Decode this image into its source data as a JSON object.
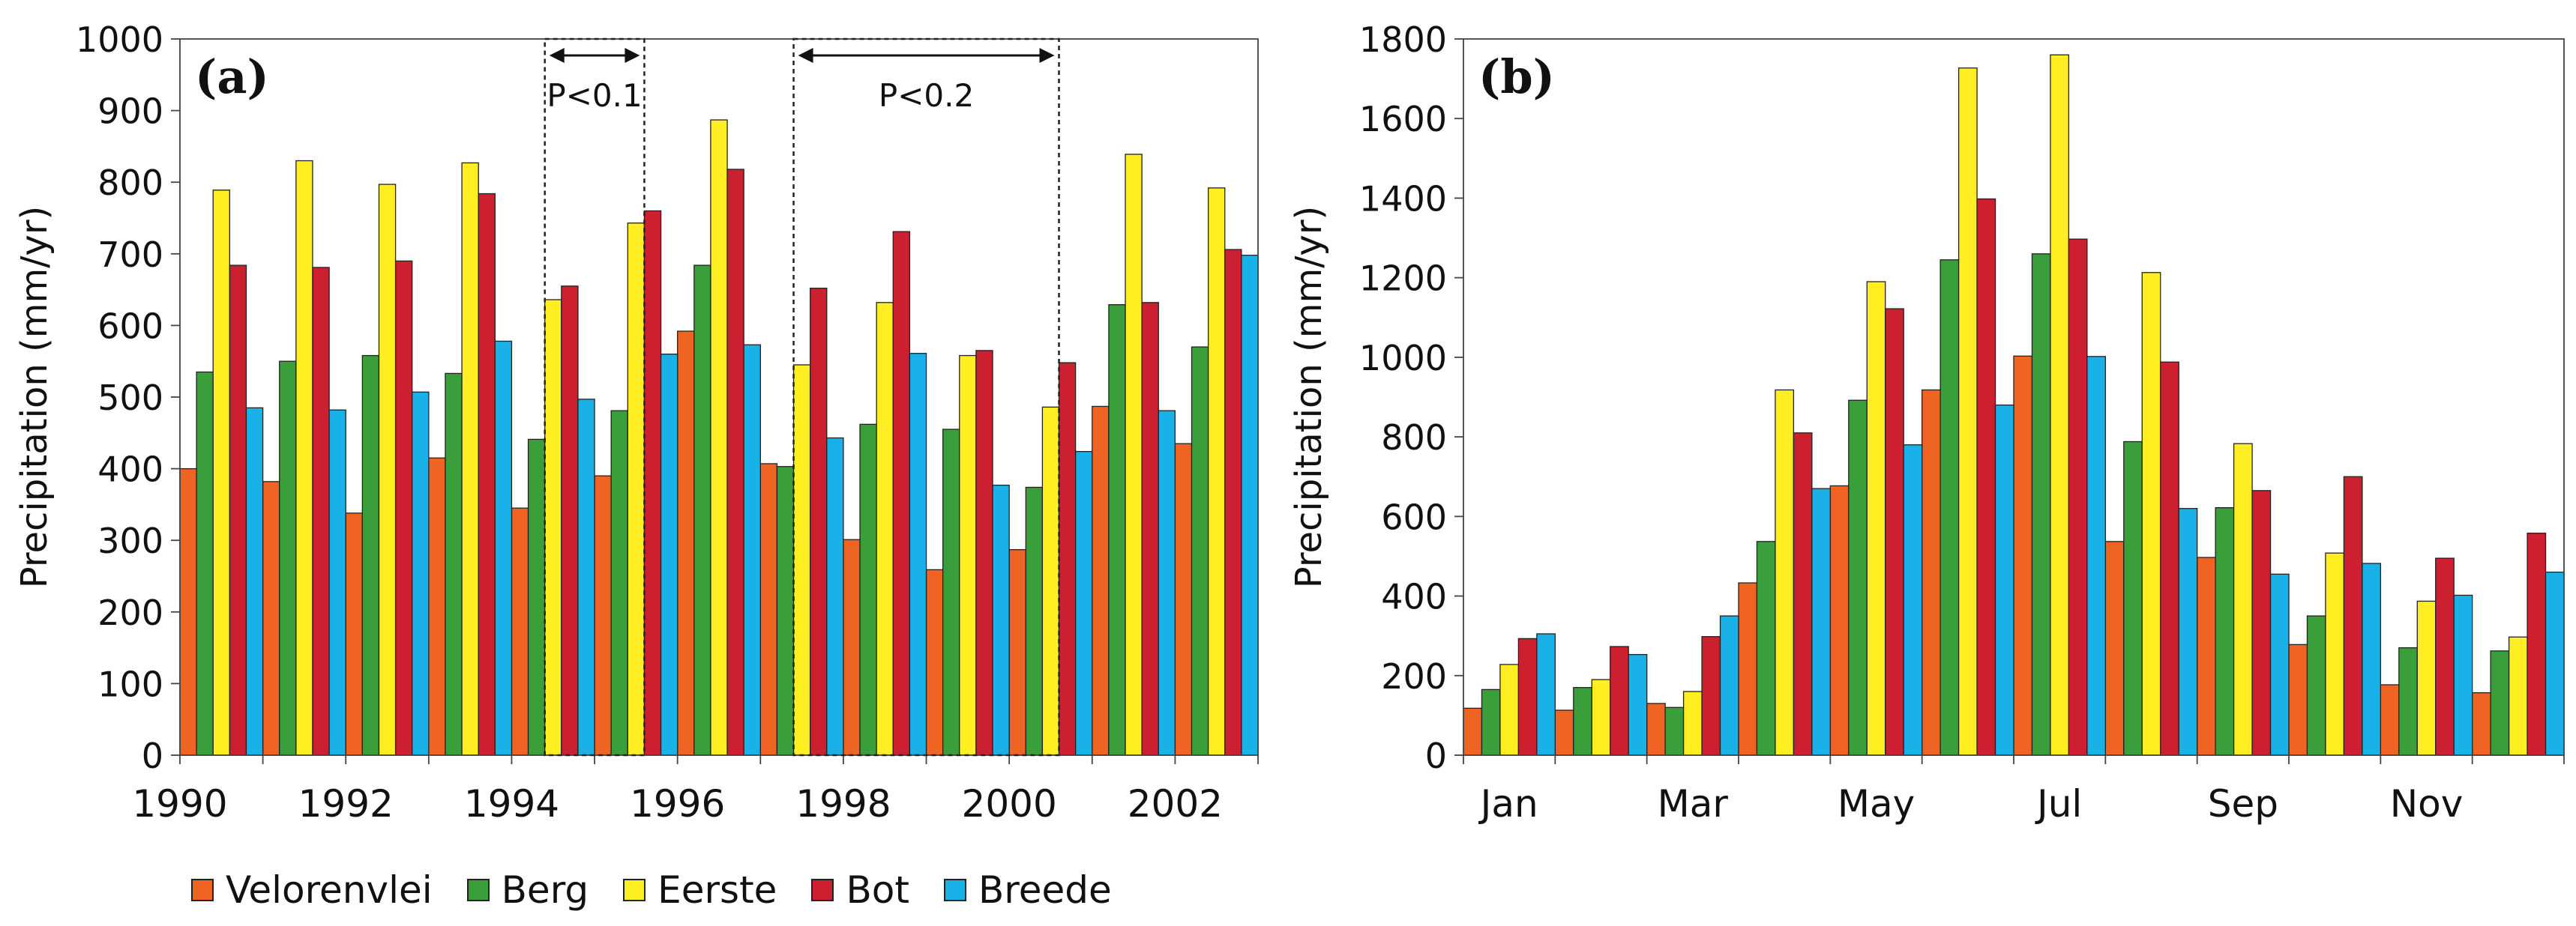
{
  "series_colors": {
    "Velorenvlei": "#f06423",
    "Berg": "#3a9e3a",
    "Eerste": "#ffee22",
    "Bot": "#cc1f2f",
    "Breede": "#1ab0e8"
  },
  "legend": [
    "Velorenvlei",
    "Berg",
    "Eerste",
    "Bot",
    "Breede"
  ],
  "chart_data": [
    {
      "type": "bar",
      "panel_label": "(a)",
      "title": "",
      "xlabel": "",
      "ylabel": "Precipitation (mm/yr)",
      "ylim": [
        0,
        1000
      ],
      "yticks": [
        0,
        100,
        200,
        300,
        400,
        500,
        600,
        700,
        800,
        900,
        1000
      ],
      "categories": [
        "1990",
        "1991",
        "1992",
        "1993",
        "1994",
        "1995",
        "1996",
        "1997",
        "1998",
        "1999",
        "2000",
        "2001",
        "2002"
      ],
      "xtick_labels": [
        "1990",
        "1992",
        "1994",
        "1996",
        "1998",
        "2000",
        "2002"
      ],
      "series": [
        {
          "name": "Velorenvlei",
          "values": [
            400,
            382,
            338,
            415,
            345,
            390,
            592,
            407,
            301,
            259,
            287,
            487,
            435
          ]
        },
        {
          "name": "Berg",
          "values": [
            535,
            550,
            558,
            533,
            441,
            481,
            684,
            403,
            462,
            455,
            374,
            629,
            570
          ]
        },
        {
          "name": "Eerste",
          "values": [
            789,
            830,
            797,
            827,
            636,
            743,
            887,
            545,
            632,
            558,
            486,
            839,
            792
          ]
        },
        {
          "name": "Bot",
          "values": [
            684,
            681,
            690,
            784,
            655,
            760,
            818,
            652,
            731,
            565,
            548,
            632,
            706
          ]
        },
        {
          "name": "Breede",
          "values": [
            485,
            482,
            507,
            578,
            497,
            560,
            573,
            443,
            561,
            377,
            424,
            481,
            698
          ]
        }
      ],
      "annotations": [
        {
          "text": "P<0.1",
          "from_year": "1994",
          "to_year": "1995"
        },
        {
          "text": "P<0.2",
          "from_year": "1997",
          "to_year": "2000"
        }
      ]
    },
    {
      "type": "bar",
      "panel_label": "(b)",
      "title": "",
      "xlabel": "",
      "ylabel": "Precipitation (mm/yr)",
      "ylim": [
        0,
        1800
      ],
      "yticks": [
        0,
        200,
        400,
        600,
        800,
        1000,
        1200,
        1400,
        1600,
        1800
      ],
      "categories": [
        "Jan",
        "Feb",
        "Mar",
        "Apr",
        "May",
        "Jun",
        "Jul",
        "Aug",
        "Sep",
        "Oct",
        "Nov",
        "Dec"
      ],
      "xtick_labels": [
        "Jan",
        "Mar",
        "May",
        "Jul",
        "Sep",
        "Nov"
      ],
      "series": [
        {
          "name": "Velorenvlei",
          "values": [
            118,
            113,
            130,
            433,
            677,
            918,
            1003,
            537,
            497,
            278,
            177,
            157
          ]
        },
        {
          "name": "Berg",
          "values": [
            165,
            170,
            120,
            537,
            892,
            1245,
            1260,
            788,
            622,
            350,
            270,
            262
          ]
        },
        {
          "name": "Eerste",
          "values": [
            228,
            190,
            160,
            918,
            1190,
            1727,
            1760,
            1213,
            783,
            508,
            387,
            297
          ]
        },
        {
          "name": "Bot",
          "values": [
            293,
            273,
            298,
            810,
            1122,
            1398,
            1297,
            988,
            665,
            700,
            495,
            558
          ]
        },
        {
          "name": "Breede",
          "values": [
            305,
            253,
            350,
            670,
            780,
            880,
            1002,
            620,
            455,
            482,
            402,
            460
          ]
        }
      ]
    }
  ]
}
